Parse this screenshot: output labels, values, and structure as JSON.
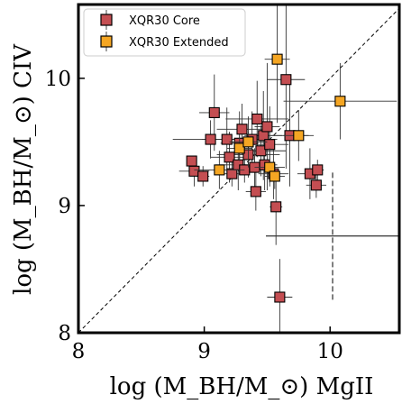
{
  "chart_data": {
    "type": "scatter",
    "xlabel": "log (M_BH/M_⊙) MgII",
    "ylabel": "log (M_BH/M_⊙) CIV",
    "xlim": [
      8.0,
      10.55
    ],
    "ylim": [
      8.0,
      10.58
    ],
    "xticks": [
      8,
      9,
      10
    ],
    "yticks": [
      8,
      9,
      10
    ],
    "tick_labels_x": [
      "8",
      "9",
      "10"
    ],
    "tick_labels_y": [
      "8",
      "9",
      "10"
    ],
    "one_to_one_line": true,
    "grid": false,
    "legend_position": "top-left",
    "colors": {
      "core": "#c44e52",
      "extended": "#f5a623"
    },
    "series": [
      {
        "name": "XQR30 Core",
        "marker": "square",
        "points": [
          {
            "x": 8.9,
            "y": 9.35,
            "xerr": 0.0,
            "yerr": 0.0
          },
          {
            "x": 8.92,
            "y": 9.27,
            "xerr": 0.12,
            "yerr": 0.12
          },
          {
            "x": 8.99,
            "y": 9.23,
            "xerr": 0.05,
            "yerr": 0.08
          },
          {
            "x": 9.05,
            "y": 9.52,
            "xerr": 0.3,
            "yerr": 0.15
          },
          {
            "x": 9.08,
            "y": 9.73,
            "xerr": 0.12,
            "yerr": 0.3
          },
          {
            "x": 9.18,
            "y": 9.52,
            "xerr": 0.2,
            "yerr": 0.25
          },
          {
            "x": 9.2,
            "y": 9.38,
            "xerr": 0.15,
            "yerr": 0.2
          },
          {
            "x": 9.22,
            "y": 9.25,
            "xerr": 0.1,
            "yerr": 0.1
          },
          {
            "x": 9.27,
            "y": 9.32,
            "xerr": 0.18,
            "yerr": 0.2
          },
          {
            "x": 9.28,
            "y": 9.49,
            "xerr": 0.15,
            "yerr": 0.25
          },
          {
            "x": 9.3,
            "y": 9.6,
            "xerr": 0.2,
            "yerr": 0.2
          },
          {
            "x": 9.32,
            "y": 9.28,
            "xerr": 0.15,
            "yerr": 0.1
          },
          {
            "x": 9.35,
            "y": 9.4,
            "xerr": 0.25,
            "yerr": 0.18
          },
          {
            "x": 9.38,
            "y": 9.52,
            "xerr": 0.2,
            "yerr": 0.22
          },
          {
            "x": 9.4,
            "y": 9.3,
            "xerr": 0.15,
            "yerr": 0.15
          },
          {
            "x": 9.41,
            "y": 9.11,
            "xerr": 0.08,
            "yerr": 0.15
          },
          {
            "x": 9.42,
            "y": 9.68,
            "xerr": 0.25,
            "yerr": 0.3
          },
          {
            "x": 9.45,
            "y": 9.43,
            "xerr": 0.2,
            "yerr": 0.2
          },
          {
            "x": 9.47,
            "y": 9.55,
            "xerr": 0.15,
            "yerr": 0.35
          },
          {
            "x": 9.48,
            "y": 9.32,
            "xerr": 0.1,
            "yerr": 0.2
          },
          {
            "x": 9.5,
            "y": 9.62,
            "xerr": 0.1,
            "yerr": 0.5
          },
          {
            "x": 9.52,
            "y": 9.48,
            "xerr": 0.15,
            "yerr": 0.3
          },
          {
            "x": 9.55,
            "y": 9.25,
            "xerr": 0.12,
            "yerr": 0.2
          },
          {
            "x": 9.57,
            "y": 8.99,
            "xerr": 0.05,
            "yerr": 0.3
          },
          {
            "x": 9.6,
            "y": 8.28,
            "xerr": 0.1,
            "yerr": 0.3
          },
          {
            "x": 9.65,
            "y": 9.99,
            "xerr": 0.15,
            "yerr": 0.7
          },
          {
            "x": 9.68,
            "y": 9.55,
            "xerr": 0.15,
            "yerr": 0.4
          },
          {
            "x": 9.84,
            "y": 9.25,
            "xerr": 0.1,
            "yerr": 0.2
          },
          {
            "x": 9.89,
            "y": 9.16,
            "xerr": 0.08,
            "yerr": 0.1
          },
          {
            "x": 9.9,
            "y": 9.28,
            "xerr": 0.05,
            "yerr": 0.08
          }
        ]
      },
      {
        "name": "XQR30 Extended",
        "marker": "square",
        "points": [
          {
            "x": 9.12,
            "y": 9.28,
            "xerr": 0.2,
            "yerr": 0.15
          },
          {
            "x": 9.28,
            "y": 9.45,
            "xerr": 0.1,
            "yerr": 0.1
          },
          {
            "x": 9.35,
            "y": 9.5,
            "xerr": 0.15,
            "yerr": 0.2
          },
          {
            "x": 9.52,
            "y": 9.3,
            "xerr": 0.12,
            "yerr": 0.15
          },
          {
            "x": 9.56,
            "y": 9.23,
            "xerr": 0.08,
            "yerr": 0.1
          },
          {
            "x": 9.58,
            "y": 10.15,
            "xerr": 0.1,
            "yerr": 0.5
          },
          {
            "x": 9.75,
            "y": 9.55,
            "xerr": 0.12,
            "yerr": 0.2
          },
          {
            "x": 10.08,
            "y": 9.82,
            "xerr": 0.45,
            "yerr": 0.3
          }
        ]
      }
    ],
    "extra_error_cross": {
      "x": 10.02,
      "y": 8.76,
      "xerr": 0.53,
      "yerr": 0.5
    }
  }
}
